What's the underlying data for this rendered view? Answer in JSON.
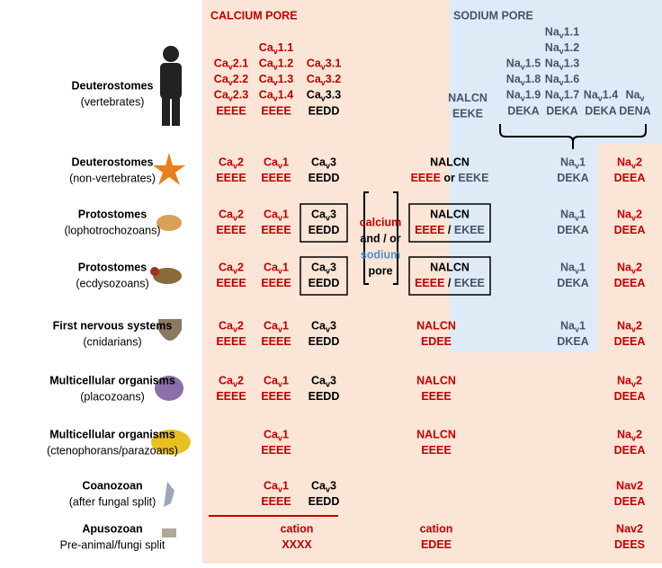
{
  "headers": {
    "calcium": "CALCIUM PORE",
    "sodium": "SODIUM PORE"
  },
  "middle": [
    {
      "text": "calcium",
      "color": "#c00000"
    },
    {
      "text": "and / or",
      "color": "#000000"
    },
    {
      "text": "sodium",
      "color": "#4f94cd"
    },
    {
      "text": "pore",
      "color": "#000000"
    }
  ],
  "rows": [
    {
      "name": "Deuterostomes",
      "group": "(vertebrates)",
      "cells": {
        "cav2": {
          "color": "#c00000",
          "lines": [
            "Cav2.1",
            "Cav2.2",
            "Cav2.3",
            "EEEE"
          ]
        },
        "cav1": {
          "color": "#c00000",
          "lines": [
            "Cav1.1",
            "Cav1.2",
            "Cav1.3",
            "Cav1.4",
            "EEEE"
          ]
        },
        "cav3": {
          "color": [
            "#c00000",
            "#c00000",
            "#000000",
            "#000000"
          ],
          "lines": [
            "Cav3.1",
            "Cav3.2",
            "Cav3.3",
            "EEDD"
          ]
        },
        "nalcn_v": {
          "color": "#44546a",
          "lines": [
            "NALCN",
            "EEKE"
          ]
        },
        "na_a": {
          "color": "#44546a",
          "lines": [
            "Nav1.5",
            "Nav1.8",
            "Nav1.9",
            "DEKA"
          ]
        },
        "na_b": {
          "color": "#44546a",
          "lines": [
            "Nav1.1",
            "Nav1.2",
            "Nav1.3",
            "Nav1.6",
            "Nav1.7",
            "DEKA"
          ]
        },
        "na_c": {
          "color": "#44546a",
          "lines": [
            "Nav1.4",
            "DEKA"
          ]
        },
        "na_d": {
          "color": "#44546a",
          "lines": [
            "Nav",
            "DENA"
          ]
        }
      }
    },
    {
      "name": "Deuterostomes",
      "group": "(non-vertebrates)",
      "cells": {
        "cav2": {
          "color": "#c00000",
          "lines": [
            "Cav2",
            "EEEE"
          ]
        },
        "cav1": {
          "color": "#c00000",
          "lines": [
            "Cav1",
            "EEEE"
          ]
        },
        "cav3": {
          "color": "#000000",
          "lines": [
            "Cav3",
            "EEDD"
          ]
        },
        "nalcn": {
          "color": "#000000",
          "lines": [
            "NALCN",
            [
              {
                "text": "EEEE",
                "color": "#c00000"
              },
              {
                "text": " or ",
                "color": "#000000"
              },
              {
                "text": "EEKE",
                "color": "#44546a"
              }
            ]
          ]
        },
        "nav1": {
          "color": "#44546a",
          "lines": [
            "Nav1",
            "DEKA"
          ]
        },
        "nav2": {
          "color": "#c00000",
          "lines": [
            "Nav2",
            "DEEA"
          ]
        }
      }
    },
    {
      "name": "Protostomes",
      "group": "(lophotrochozoans)",
      "cells": {
        "cav2": {
          "color": "#c00000",
          "lines": [
            "Cav2",
            "EEEE"
          ]
        },
        "cav1": {
          "color": "#c00000",
          "lines": [
            "Cav1",
            "EEEE"
          ]
        },
        "cav3": {
          "color": "#000000",
          "boxed": true,
          "lines": [
            "Cav3",
            "EEDD"
          ]
        },
        "nalcn": {
          "color": "#000000",
          "boxed": true,
          "lines": [
            "NALCN",
            [
              {
                "text": "EEEE",
                "color": "#c00000"
              },
              {
                "text": " / ",
                "color": "#000000"
              },
              {
                "text": "EKEE",
                "color": "#44546a"
              }
            ]
          ]
        },
        "nav1": {
          "color": "#44546a",
          "lines": [
            "Nav1",
            "DEKA"
          ]
        },
        "nav2": {
          "color": "#c00000",
          "lines": [
            "Nav2",
            "DEEA"
          ]
        }
      }
    },
    {
      "name": "Protostomes",
      "group": "(ecdysozoans)",
      "cells": {
        "cav2": {
          "color": "#c00000",
          "lines": [
            "Cav2",
            "EEEE"
          ]
        },
        "cav1": {
          "color": "#c00000",
          "lines": [
            "Cav1",
            "EEEE"
          ]
        },
        "cav3": {
          "color": "#000000",
          "boxed": true,
          "lines": [
            "Cav3",
            "EEDD"
          ]
        },
        "nalcn": {
          "color": "#000000",
          "boxed": true,
          "lines": [
            "NALCN",
            [
              {
                "text": "EEEE",
                "color": "#c00000"
              },
              {
                "text": " / ",
                "color": "#000000"
              },
              {
                "text": "EKEE",
                "color": "#44546a"
              }
            ]
          ]
        },
        "nav1": {
          "color": "#44546a",
          "lines": [
            "Nav1",
            "DEKA"
          ]
        },
        "nav2": {
          "color": "#c00000",
          "lines": [
            "Nav2",
            "DEEA"
          ]
        }
      }
    },
    {
      "name": "First nervous systems",
      "group": "(cnidarians)",
      "cells": {
        "cav2": {
          "color": "#c00000",
          "lines": [
            "Cav2",
            "EEEE"
          ]
        },
        "cav1": {
          "color": "#c00000",
          "lines": [
            "Cav1",
            "EEEE"
          ]
        },
        "cav3": {
          "color": "#000000",
          "lines": [
            "Cav3",
            "EEDD"
          ]
        },
        "nalcn_l": {
          "color": "#c00000",
          "lines": [
            "NALCN",
            "EDEE"
          ]
        },
        "nav1": {
          "color": "#44546a",
          "lines": [
            "Nav1",
            "DKEA"
          ]
        },
        "nav2": {
          "color": "#c00000",
          "lines": [
            "Nav2",
            "DEEA"
          ]
        }
      }
    },
    {
      "name": "Multicellular organisms",
      "group": "(placozoans)",
      "cells": {
        "cav2": {
          "color": "#c00000",
          "lines": [
            "Cav2",
            "EEEE"
          ]
        },
        "cav1": {
          "color": "#c00000",
          "lines": [
            "Cav1",
            "EEEE"
          ]
        },
        "cav3": {
          "color": "#000000",
          "lines": [
            "Cav3",
            "EEDD"
          ]
        },
        "nalcn_l": {
          "color": "#c00000",
          "lines": [
            "NALCN",
            "EEEE"
          ]
        },
        "nav2": {
          "color": "#c00000",
          "lines": [
            "Nav2",
            "DEEA"
          ]
        }
      }
    },
    {
      "name": "Multicellular organisms",
      "group": "(ctenophorans/parazoans)",
      "cells": {
        "cav1": {
          "color": "#c00000",
          "lines": [
            "Cav1",
            "EEEE"
          ]
        },
        "nalcn_l": {
          "color": "#c00000",
          "lines": [
            "NALCN",
            "EEEE"
          ]
        },
        "nav2": {
          "color": "#c00000",
          "lines": [
            "Nav2",
            "DEEA"
          ]
        }
      }
    },
    {
      "name": "Coanozoan",
      "group": "(after fungal split)",
      "cells": {
        "cav1": {
          "color": "#c00000",
          "lines": [
            "Cav1",
            "EEEE"
          ]
        },
        "cav3": {
          "color": "#000000",
          "lines": [
            "Cav3",
            "EEDD"
          ]
        },
        "nav2": {
          "color": "#c00000",
          "plain": true,
          "lines": [
            "Nav2",
            "DEEA"
          ]
        }
      }
    },
    {
      "name": "Apusozoan",
      "group": "Pre-animal/fungi split",
      "cells": {
        "cation": {
          "color": "#c00000",
          "lines": [
            "cation",
            "XXXX"
          ]
        },
        "nalcn_l": {
          "color": "#c00000",
          "lines": [
            "cation",
            "EDEE"
          ]
        },
        "nav2": {
          "color": "#c00000",
          "plain": true,
          "lines": [
            "Nav2",
            "DEES"
          ]
        }
      }
    }
  ]
}
